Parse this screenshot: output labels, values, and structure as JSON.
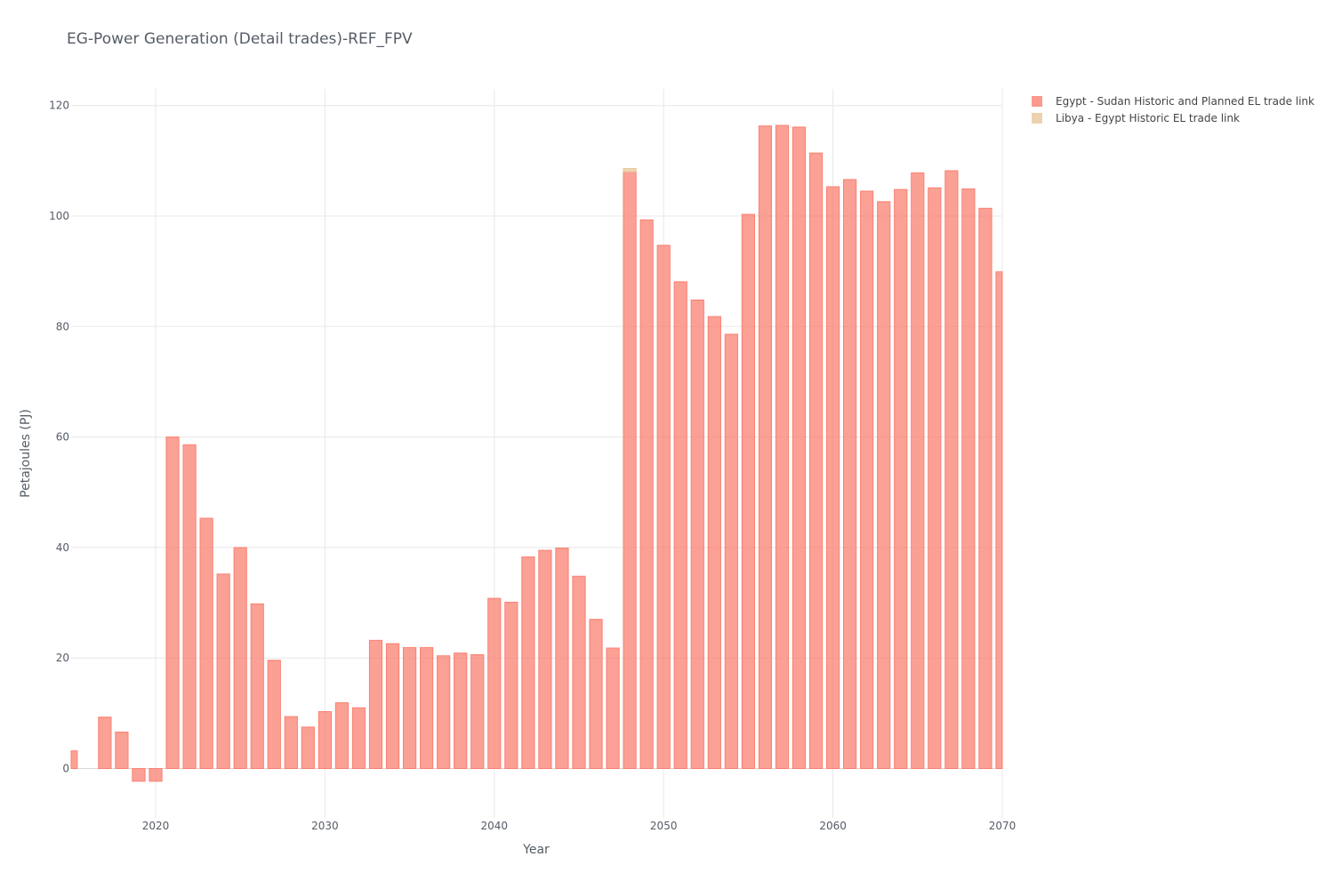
{
  "chart_data": {
    "type": "bar",
    "barmode": "stack",
    "title": "EG-Power Generation (Detail trades)-REF_FPV",
    "xlabel": "Year",
    "ylabel": "Petajoules (PJ)",
    "xlim": [
      2015,
      2070
    ],
    "ylim": [
      -9,
      123
    ],
    "xticks": [
      2020,
      2030,
      2040,
      2050,
      2060,
      2070
    ],
    "yticks": [
      0,
      20,
      40,
      60,
      80,
      100,
      120
    ],
    "grid": true,
    "legend_position": "top-right",
    "x": [
      2015,
      2016,
      2017,
      2018,
      2019,
      2020,
      2021,
      2022,
      2023,
      2024,
      2025,
      2026,
      2027,
      2028,
      2029,
      2030,
      2031,
      2032,
      2033,
      2034,
      2035,
      2036,
      2037,
      2038,
      2039,
      2040,
      2041,
      2042,
      2043,
      2044,
      2045,
      2046,
      2047,
      2048,
      2049,
      2050,
      2051,
      2052,
      2053,
      2054,
      2055,
      2056,
      2057,
      2058,
      2059,
      2060,
      2061,
      2062,
      2063,
      2064,
      2065,
      2066,
      2067,
      2068,
      2069,
      2070
    ],
    "series": [
      {
        "name": "Egypt - Sudan Historic and Planned EL trade link",
        "color": "#fa8072",
        "values": [
          3.2,
          0,
          9.3,
          6.6,
          -2.3,
          -2.3,
          60,
          58.6,
          45.3,
          35.2,
          40,
          29.8,
          19.6,
          9.4,
          7.5,
          10.3,
          11.9,
          11,
          23.2,
          22.6,
          21.9,
          21.9,
          20.4,
          20.9,
          20.6,
          30.8,
          30.1,
          38.3,
          39.5,
          39.9,
          34.8,
          27,
          21.8,
          108,
          99.3,
          94.7,
          88.1,
          84.8,
          81.8,
          78.6,
          100.3,
          116.3,
          116.4,
          116.1,
          111.4,
          105.3,
          106.6,
          104.5,
          102.6,
          104.8,
          107.8,
          105.1,
          108.2,
          104.9,
          101.4,
          89.9
        ],
        "labels": [
          "3.2",
          "0",
          "9.3",
          "6.6",
          "-2.3",
          "-2.3",
          "60",
          "58.6",
          "45.3",
          "35.2",
          "40",
          "29.8",
          "19.6",
          "9.4",
          "7.5",
          "10.3",
          "11.9",
          "11",
          "23.2",
          "22.6",
          "21.9",
          "21.9",
          "20.4",
          "20.9",
          "20.6",
          "30.8",
          "30.1",
          "38.3",
          "39.5",
          "39.9",
          "34.8",
          "27",
          "21.8",
          "108",
          "99.3",
          "94.7",
          "88.1",
          "84.8",
          "81.8",
          "78.6",
          "100.3",
          "116.3",
          "116.4",
          "116.1",
          "111.4",
          "105.3",
          "106.6",
          "104.5",
          "102.6",
          "104.8",
          "107.8",
          "105.1",
          "108.2",
          "104.9",
          "101.4",
          "89.9"
        ]
      },
      {
        "name": "Libya - Egypt Historic EL trade link",
        "color": "#e8c79a",
        "values": [
          0,
          0,
          0,
          0,
          0,
          0,
          0,
          0,
          0,
          0,
          0,
          0,
          0,
          0,
          0,
          0,
          0,
          0,
          0,
          0,
          0,
          0,
          0,
          0,
          0,
          0,
          0,
          0,
          0,
          0,
          0,
          0,
          0,
          0.6,
          0,
          0,
          0,
          0,
          0,
          0,
          0,
          0,
          0,
          0,
          0,
          0,
          0,
          0,
          0,
          0,
          0,
          0,
          0,
          0,
          0,
          0
        ],
        "labels": [
          "0",
          "0",
          "0",
          "0",
          "0",
          "0",
          "0",
          "0",
          "0",
          "0",
          "0",
          "0",
          "0",
          "0",
          "0",
          "0",
          "0",
          "0",
          "0",
          "0",
          "0",
          "0",
          "0",
          "0",
          "0",
          "0",
          "0",
          "0",
          "0",
          "0",
          "0",
          "0",
          "0",
          "0.6",
          "0",
          "0",
          "0",
          "0",
          "0",
          "0",
          "0",
          "0",
          "0",
          "0",
          "0",
          "0",
          "0",
          "0",
          "0",
          "0",
          "0",
          "0",
          "0",
          "0",
          "0",
          "0"
        ]
      }
    ]
  }
}
